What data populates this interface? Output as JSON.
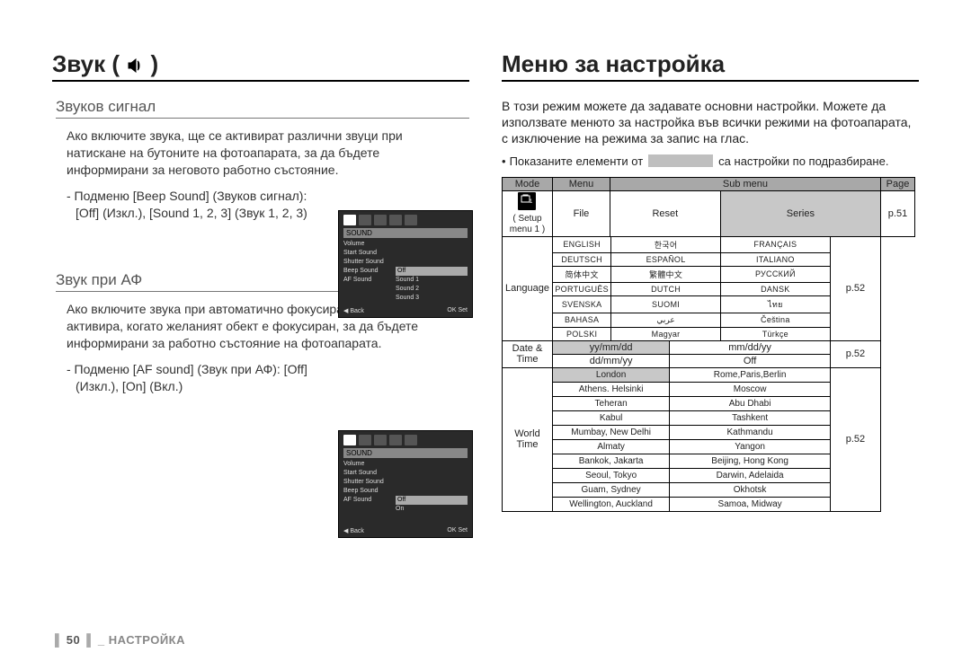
{
  "left": {
    "title_prefix": "Звук (",
    "title_suffix": ")",
    "section1": {
      "heading": "Звуков сигнал",
      "para": "Ако включите звука, ще се активират различни звуци при натискане на бутоните на фотоапарата, за да бъдете информирани за неговото работно състояние.",
      "bullet": "- Подменю [Beep Sound] (Звуков сигнал): [Off] (Изкл.), [Sound 1, 2, 3] (Звук 1, 2, 3)"
    },
    "section2": {
      "heading": "Звук при АФ",
      "para": "Ако включите звука при автоматично фокусиране, той ще се активира, когато желаният обект е фокусиран, за да бъдете информирани за работно състояние на фотоапарата.",
      "bullet": "- Подменю [AF sound] (Звук при АФ): [Off] (Изкл.), [On] (Вкл.)"
    },
    "cam1": {
      "header": "SOUND",
      "rows": [
        {
          "l": "Volume",
          "r": ""
        },
        {
          "l": "Start Sound",
          "r": ""
        },
        {
          "l": "Shutter Sound",
          "r": ""
        },
        {
          "l": "Beep Sound",
          "r": "Off",
          "sel": true
        },
        {
          "l": "AF Sound",
          "r": "Sound 1"
        },
        {
          "l": "",
          "r": "Sound 2"
        },
        {
          "l": "",
          "r": "Sound 3"
        }
      ],
      "foot_l": "◀ Back",
      "foot_r": "OK Set"
    },
    "cam2": {
      "header": "SOUND",
      "rows": [
        {
          "l": "Volume",
          "r": ""
        },
        {
          "l": "Start Sound",
          "r": ""
        },
        {
          "l": "Shutter Sound",
          "r": ""
        },
        {
          "l": "Beep Sound",
          "r": ""
        },
        {
          "l": "AF Sound",
          "r": "Off",
          "sel": true
        },
        {
          "l": "",
          "r": "On"
        }
      ],
      "foot_l": "◀ Back",
      "foot_r": "OK Set"
    }
  },
  "right": {
    "title": "Меню за настройка",
    "para": "В този режим можете да задавате основни настройки. Можете да използвате менюто за настройка във всички режими на фотоапарата, с изключение на режима за запис на глас.",
    "note_before": "Показаните елементи от",
    "note_after": "са настройки по подразбиране.",
    "table": {
      "headers": {
        "mode": "Mode",
        "menu": "Menu",
        "submenu": "Sub menu",
        "page": "Page"
      },
      "mode_label": "( Setup menu 1 )",
      "file": {
        "menu": "File",
        "reset": "Reset",
        "series": "Series",
        "page": "p.51"
      },
      "language": {
        "menu": "Language",
        "cells": [
          [
            "ENGLISH",
            "한국어",
            "FRANÇAIS"
          ],
          [
            "DEUTSCH",
            "ESPAÑOL",
            "ITALIANO"
          ],
          [
            "简体中文",
            "繁體中文",
            "РУССКИЙ"
          ],
          [
            "PORTUGUÊS",
            "DUTCH",
            "DANSK"
          ],
          [
            "SVENSKA",
            "SUOMI",
            "ไทย"
          ],
          [
            "BAHASA",
            "عربي",
            "Čeština"
          ],
          [
            "POLSKI",
            "Magyar",
            "Türkçe"
          ]
        ],
        "page": "p.52"
      },
      "datetime": {
        "menu": "Date & Time",
        "row1": [
          "yy/mm/dd",
          "mm/dd/yy"
        ],
        "row2": [
          "dd/mm/yy",
          "Off"
        ],
        "page": "p.52"
      },
      "worldtime": {
        "menu": "World Time",
        "cells": [
          [
            "London",
            "Rome,Paris,Berlin"
          ],
          [
            "Athens. Helsinki",
            "Moscow"
          ],
          [
            "Teheran",
            "Abu Dhabi"
          ],
          [
            "Kabul",
            "Tashkent"
          ],
          [
            "Mumbay, New Delhi",
            "Kathmandu"
          ],
          [
            "Almaty",
            "Yangon"
          ],
          [
            "Bankok, Jakarta",
            "Beijing, Hong Kong"
          ],
          [
            "Seoul, Tokyo",
            "Darwin, Adelaida"
          ],
          [
            "Guam, Sydney",
            "Okhotsk"
          ],
          [
            "Wellington, Auckland",
            "Samoa, Midway"
          ]
        ],
        "page": "p.52"
      }
    }
  },
  "footer": {
    "page_no": "50",
    "label": "НАСТРОЙКА"
  }
}
